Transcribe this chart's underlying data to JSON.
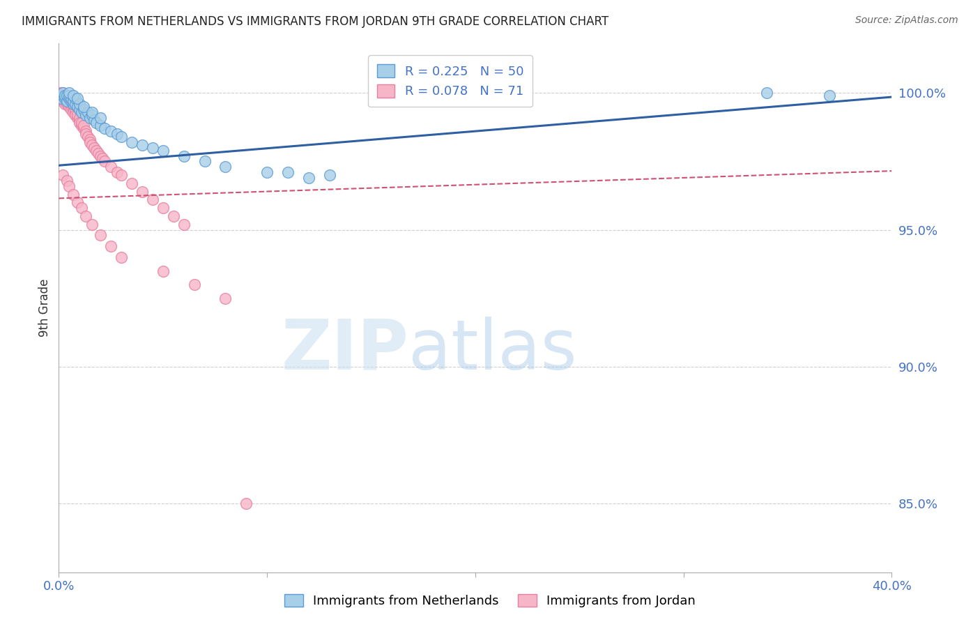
{
  "title": "IMMIGRANTS FROM NETHERLANDS VS IMMIGRANTS FROM JORDAN 9TH GRADE CORRELATION CHART",
  "source": "Source: ZipAtlas.com",
  "ylabel": "9th Grade",
  "y_ticks": [
    0.85,
    0.9,
    0.95,
    1.0
  ],
  "y_tick_labels": [
    "85.0%",
    "90.0%",
    "95.0%",
    "100.0%"
  ],
  "x_range": [
    0.0,
    0.4
  ],
  "y_range": [
    0.825,
    1.018
  ],
  "netherlands_color": "#a8cfe8",
  "jordan_color": "#f7b6c8",
  "netherlands_edge_color": "#5b9bd5",
  "jordan_edge_color": "#e87fa0",
  "netherlands_R": 0.225,
  "netherlands_N": 50,
  "jordan_R": 0.078,
  "jordan_N": 71,
  "watermark_zip": "ZIP",
  "watermark_atlas": "atlas",
  "background_color": "#ffffff",
  "title_color": "#222222",
  "tick_color": "#4472c4",
  "grid_color": "#d0d0d0",
  "trendline_netherlands_color": "#2e5fa3",
  "trendline_jordan_color": "#d05070",
  "nl_trendline_x0": 0.0,
  "nl_trendline_y0": 0.9735,
  "nl_trendline_x1": 0.4,
  "nl_trendline_y1": 0.9985,
  "jo_trendline_x0": 0.0,
  "jo_trendline_y0": 0.9615,
  "jo_trendline_x1": 0.4,
  "jo_trendline_y1": 0.9715,
  "nl_x": [
    0.001,
    0.002,
    0.002,
    0.003,
    0.003,
    0.004,
    0.004,
    0.005,
    0.005,
    0.006,
    0.006,
    0.007,
    0.007,
    0.008,
    0.008,
    0.009,
    0.01,
    0.01,
    0.011,
    0.012,
    0.013,
    0.014,
    0.015,
    0.016,
    0.017,
    0.018,
    0.02,
    0.022,
    0.025,
    0.028,
    0.03,
    0.035,
    0.04,
    0.045,
    0.05,
    0.06,
    0.07,
    0.08,
    0.1,
    0.12,
    0.005,
    0.007,
    0.009,
    0.012,
    0.016,
    0.02,
    0.11,
    0.13,
    0.34,
    0.37
  ],
  "nl_y": [
    0.998,
    0.999,
    1.0,
    0.998,
    0.999,
    0.997,
    0.999,
    0.998,
    0.999,
    0.997,
    0.998,
    0.996,
    0.997,
    0.996,
    0.998,
    0.995,
    0.994,
    0.996,
    0.993,
    0.994,
    0.992,
    0.993,
    0.991,
    0.992,
    0.99,
    0.989,
    0.988,
    0.987,
    0.986,
    0.985,
    0.984,
    0.982,
    0.981,
    0.98,
    0.979,
    0.977,
    0.975,
    0.973,
    0.971,
    0.969,
    1.0,
    0.999,
    0.998,
    0.995,
    0.993,
    0.991,
    0.971,
    0.97,
    1.0,
    0.999
  ],
  "jo_x": [
    0.001,
    0.001,
    0.001,
    0.002,
    0.002,
    0.002,
    0.002,
    0.003,
    0.003,
    0.003,
    0.003,
    0.004,
    0.004,
    0.004,
    0.005,
    0.005,
    0.005,
    0.006,
    0.006,
    0.006,
    0.007,
    0.007,
    0.007,
    0.008,
    0.008,
    0.008,
    0.009,
    0.009,
    0.01,
    0.01,
    0.01,
    0.011,
    0.011,
    0.012,
    0.012,
    0.013,
    0.013,
    0.014,
    0.015,
    0.015,
    0.016,
    0.017,
    0.018,
    0.019,
    0.02,
    0.021,
    0.022,
    0.025,
    0.028,
    0.03,
    0.035,
    0.04,
    0.045,
    0.05,
    0.055,
    0.06,
    0.002,
    0.004,
    0.005,
    0.007,
    0.009,
    0.011,
    0.013,
    0.016,
    0.02,
    0.025,
    0.03,
    0.05,
    0.065,
    0.08,
    0.09
  ],
  "jo_y": [
    0.999,
    1.0,
    0.998,
    0.999,
    0.998,
    0.997,
    1.0,
    0.998,
    0.997,
    0.999,
    0.996,
    0.997,
    0.996,
    0.998,
    0.996,
    0.997,
    0.995,
    0.995,
    0.996,
    0.994,
    0.994,
    0.995,
    0.993,
    0.993,
    0.994,
    0.992,
    0.991,
    0.992,
    0.99,
    0.991,
    0.989,
    0.988,
    0.989,
    0.987,
    0.988,
    0.986,
    0.985,
    0.984,
    0.983,
    0.982,
    0.981,
    0.98,
    0.979,
    0.978,
    0.977,
    0.976,
    0.975,
    0.973,
    0.971,
    0.97,
    0.967,
    0.964,
    0.961,
    0.958,
    0.955,
    0.952,
    0.97,
    0.968,
    0.966,
    0.963,
    0.96,
    0.958,
    0.955,
    0.952,
    0.948,
    0.944,
    0.94,
    0.935,
    0.93,
    0.925,
    0.85
  ]
}
